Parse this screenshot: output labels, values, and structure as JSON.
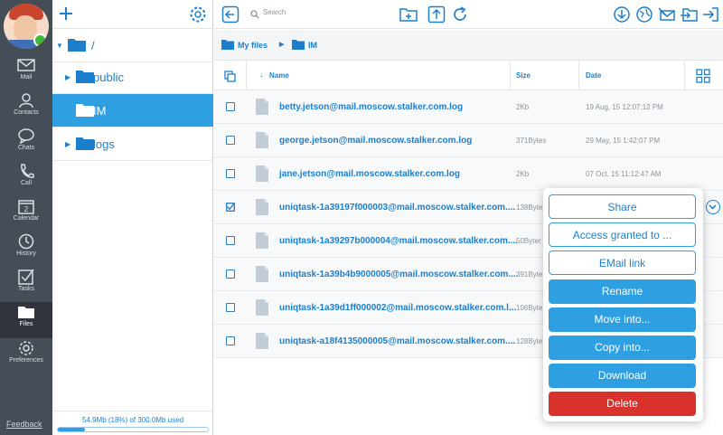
{
  "sidebar": {
    "items": [
      {
        "label": "Mail",
        "icon": "mail-icon"
      },
      {
        "label": "Contacts",
        "icon": "contacts-icon"
      },
      {
        "label": "Chats",
        "icon": "chats-icon"
      },
      {
        "label": "Call",
        "icon": "phone-icon"
      },
      {
        "label": "Calendar",
        "icon": "calendar-icon",
        "day": "2"
      },
      {
        "label": "History",
        "icon": "clock-icon"
      },
      {
        "label": "Tasks",
        "icon": "tasks-icon"
      },
      {
        "label": "Files",
        "icon": "folder-icon",
        "active": true
      },
      {
        "label": "Preferences",
        "icon": "gear-icon"
      }
    ],
    "feedback_label": "Feedback"
  },
  "tree": {
    "root_label": "/",
    "folders": [
      {
        "label": "public",
        "selected": false
      },
      {
        "label": "IM",
        "selected": true
      },
      {
        "label": "logs",
        "selected": false
      }
    ],
    "quota_text": "54.9Mb (18%) of 300.0Mb used",
    "quota_fraction": 0.18
  },
  "toolbar": {
    "search_placeholder": "Search"
  },
  "breadcrumb": {
    "root": "My files",
    "current": "IM"
  },
  "table": {
    "headers": {
      "name": "Name",
      "size": "Size",
      "date": "Date"
    },
    "rows": [
      {
        "name": "betty.jetson@mail.moscow.stalker.com.log",
        "size": "2Kb",
        "date": "19 Aug, 15 12:07:12 PM",
        "checked": false
      },
      {
        "name": "george.jetson@mail.moscow.stalker.com.log",
        "size": "371Bytes",
        "date": "29 May, 15 1:42:07 PM",
        "checked": false
      },
      {
        "name": "jane.jetson@mail.moscow.stalker.com.log",
        "size": "2Kb",
        "date": "07 Oct, 15 11:12:47 AM",
        "checked": false
      },
      {
        "name": "uniqtask-1a39197f000003@mail.moscow.stalker.com....",
        "size": "138Byte",
        "date": "",
        "checked": true
      },
      {
        "name": "uniqtask-1a39297b000004@mail.moscow.stalker.com....",
        "size": "50Byter",
        "date": "",
        "checked": false
      },
      {
        "name": "uniqtask-1a39b4b9000005@mail.moscow.stalker.com....",
        "size": "391Byte",
        "date": "",
        "checked": false
      },
      {
        "name": "uniqtask-1a39d1ff000002@mail.moscow.stalker.com.l...",
        "size": "106Byte",
        "date": "",
        "checked": false
      },
      {
        "name": "uniqtask-a18f4135000005@mail.moscow.stalker.com....",
        "size": "128Byte",
        "date": "",
        "checked": false
      }
    ]
  },
  "context_menu": {
    "share": "Share",
    "access": "Access granted to ...",
    "email_link": "EMail link",
    "rename": "Rename",
    "move_into": "Move into...",
    "copy_into": "Copy into...",
    "download": "Download",
    "delete": "Delete"
  },
  "colors": {
    "accent": "#2ea0e2",
    "danger": "#d9312c",
    "nav_bg": "#454e56"
  }
}
